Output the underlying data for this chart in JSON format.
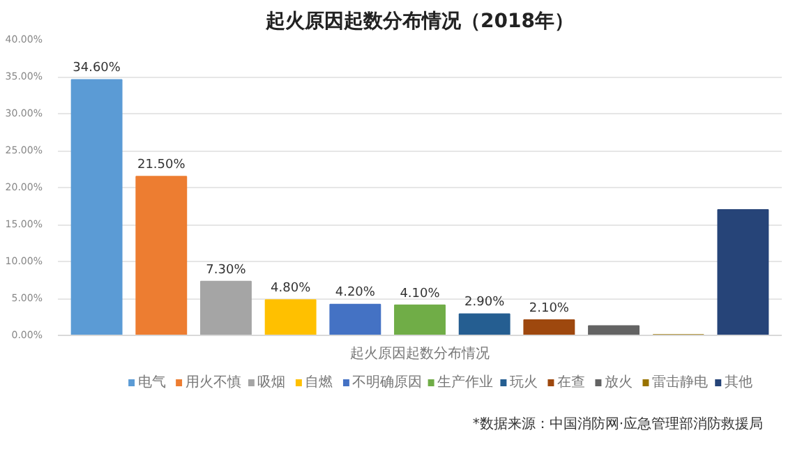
{
  "chart_data": {
    "type": "bar",
    "title": "起火原因起数分布情况（2018年）",
    "xlabel": "起火原因起数分布情况",
    "categories": [
      null,
      null,
      null,
      null,
      null,
      null,
      null,
      null,
      null,
      null,
      null
    ],
    "series": [
      {
        "name": "电气",
        "color": "#5b9bd5",
        "values": [
          34.6,
          null,
          null,
          null,
          null,
          null,
          null,
          null,
          null,
          null,
          null
        ],
        "value_labels": [
          "34.60%",
          null,
          null,
          null,
          null,
          null,
          null,
          null,
          null,
          null,
          null
        ]
      },
      {
        "name": "用火不慎",
        "color": "#ed7d31",
        "values": [
          null,
          21.5,
          null,
          null,
          null,
          null,
          null,
          null,
          null,
          null,
          null
        ],
        "value_labels": [
          null,
          "21.50%",
          null,
          null,
          null,
          null,
          null,
          null,
          null,
          null,
          null
        ]
      },
      {
        "name": "吸烟",
        "color": "#a5a5a5",
        "values": [
          null,
          null,
          7.3,
          null,
          null,
          null,
          null,
          null,
          null,
          null,
          null
        ],
        "value_labels": [
          null,
          null,
          "7.30%",
          null,
          null,
          null,
          null,
          null,
          null,
          null,
          null
        ]
      },
      {
        "name": "自燃",
        "color": "#ffc000",
        "values": [
          null,
          null,
          null,
          4.8,
          null,
          null,
          null,
          null,
          null,
          null,
          null
        ],
        "value_labels": [
          null,
          null,
          null,
          "4.80%",
          null,
          null,
          null,
          null,
          null,
          null,
          null
        ]
      },
      {
        "name": "不明确原因",
        "color": "#4472c4",
        "values": [
          null,
          null,
          null,
          null,
          4.2,
          null,
          null,
          null,
          null,
          null,
          null
        ],
        "value_labels": [
          null,
          null,
          null,
          null,
          "4.20%",
          null,
          null,
          null,
          null,
          null,
          null
        ]
      },
      {
        "name": "生产作业",
        "color": "#70ad47",
        "values": [
          null,
          null,
          null,
          null,
          null,
          4.1,
          null,
          null,
          null,
          null,
          null
        ],
        "value_labels": [
          null,
          null,
          null,
          null,
          null,
          "4.10%",
          null,
          null,
          null,
          null,
          null
        ]
      },
      {
        "name": "玩火",
        "color": "#255e91",
        "values": [
          null,
          null,
          null,
          null,
          null,
          null,
          2.9,
          null,
          null,
          null,
          null
        ],
        "value_labels": [
          null,
          null,
          null,
          null,
          null,
          null,
          "2.90%",
          null,
          null,
          null,
          null
        ]
      },
      {
        "name": "在查",
        "color": "#9e480e",
        "values": [
          null,
          null,
          null,
          null,
          null,
          null,
          null,
          2.1,
          null,
          null,
          null
        ],
        "value_labels": [
          null,
          null,
          null,
          null,
          null,
          null,
          null,
          "2.10%",
          null,
          null,
          null
        ]
      },
      {
        "name": "放火",
        "color": "#636363",
        "values": [
          null,
          null,
          null,
          null,
          null,
          null,
          null,
          null,
          1.3,
          null,
          null
        ]
      },
      {
        "name": "雷击静电",
        "color": "#997300",
        "values": [
          null,
          null,
          null,
          null,
          null,
          null,
          null,
          null,
          null,
          0.1,
          null
        ]
      },
      {
        "name": "其他",
        "color": "#264478",
        "values": [
          null,
          null,
          null,
          null,
          null,
          null,
          null,
          null,
          null,
          null,
          17.0
        ]
      }
    ],
    "ylim": [
      0,
      40
    ],
    "yticks": [
      {
        "value": 0,
        "label": "0.00%"
      },
      {
        "value": 5,
        "label": "5.00%"
      },
      {
        "value": 10,
        "label": "10.00%"
      },
      {
        "value": 15,
        "label": "15.00%"
      },
      {
        "value": 20,
        "label": "20.00%"
      },
      {
        "value": 25,
        "label": "25.00%"
      },
      {
        "value": 30,
        "label": "30.00%"
      },
      {
        "value": 35,
        "label": "35.00%"
      },
      {
        "value": 40,
        "label": "40.00%"
      }
    ],
    "grid": "y",
    "legend": "bottom",
    "annotations": [
      "*数据来源：中国消防网·应急管理部消防救援局"
    ]
  }
}
